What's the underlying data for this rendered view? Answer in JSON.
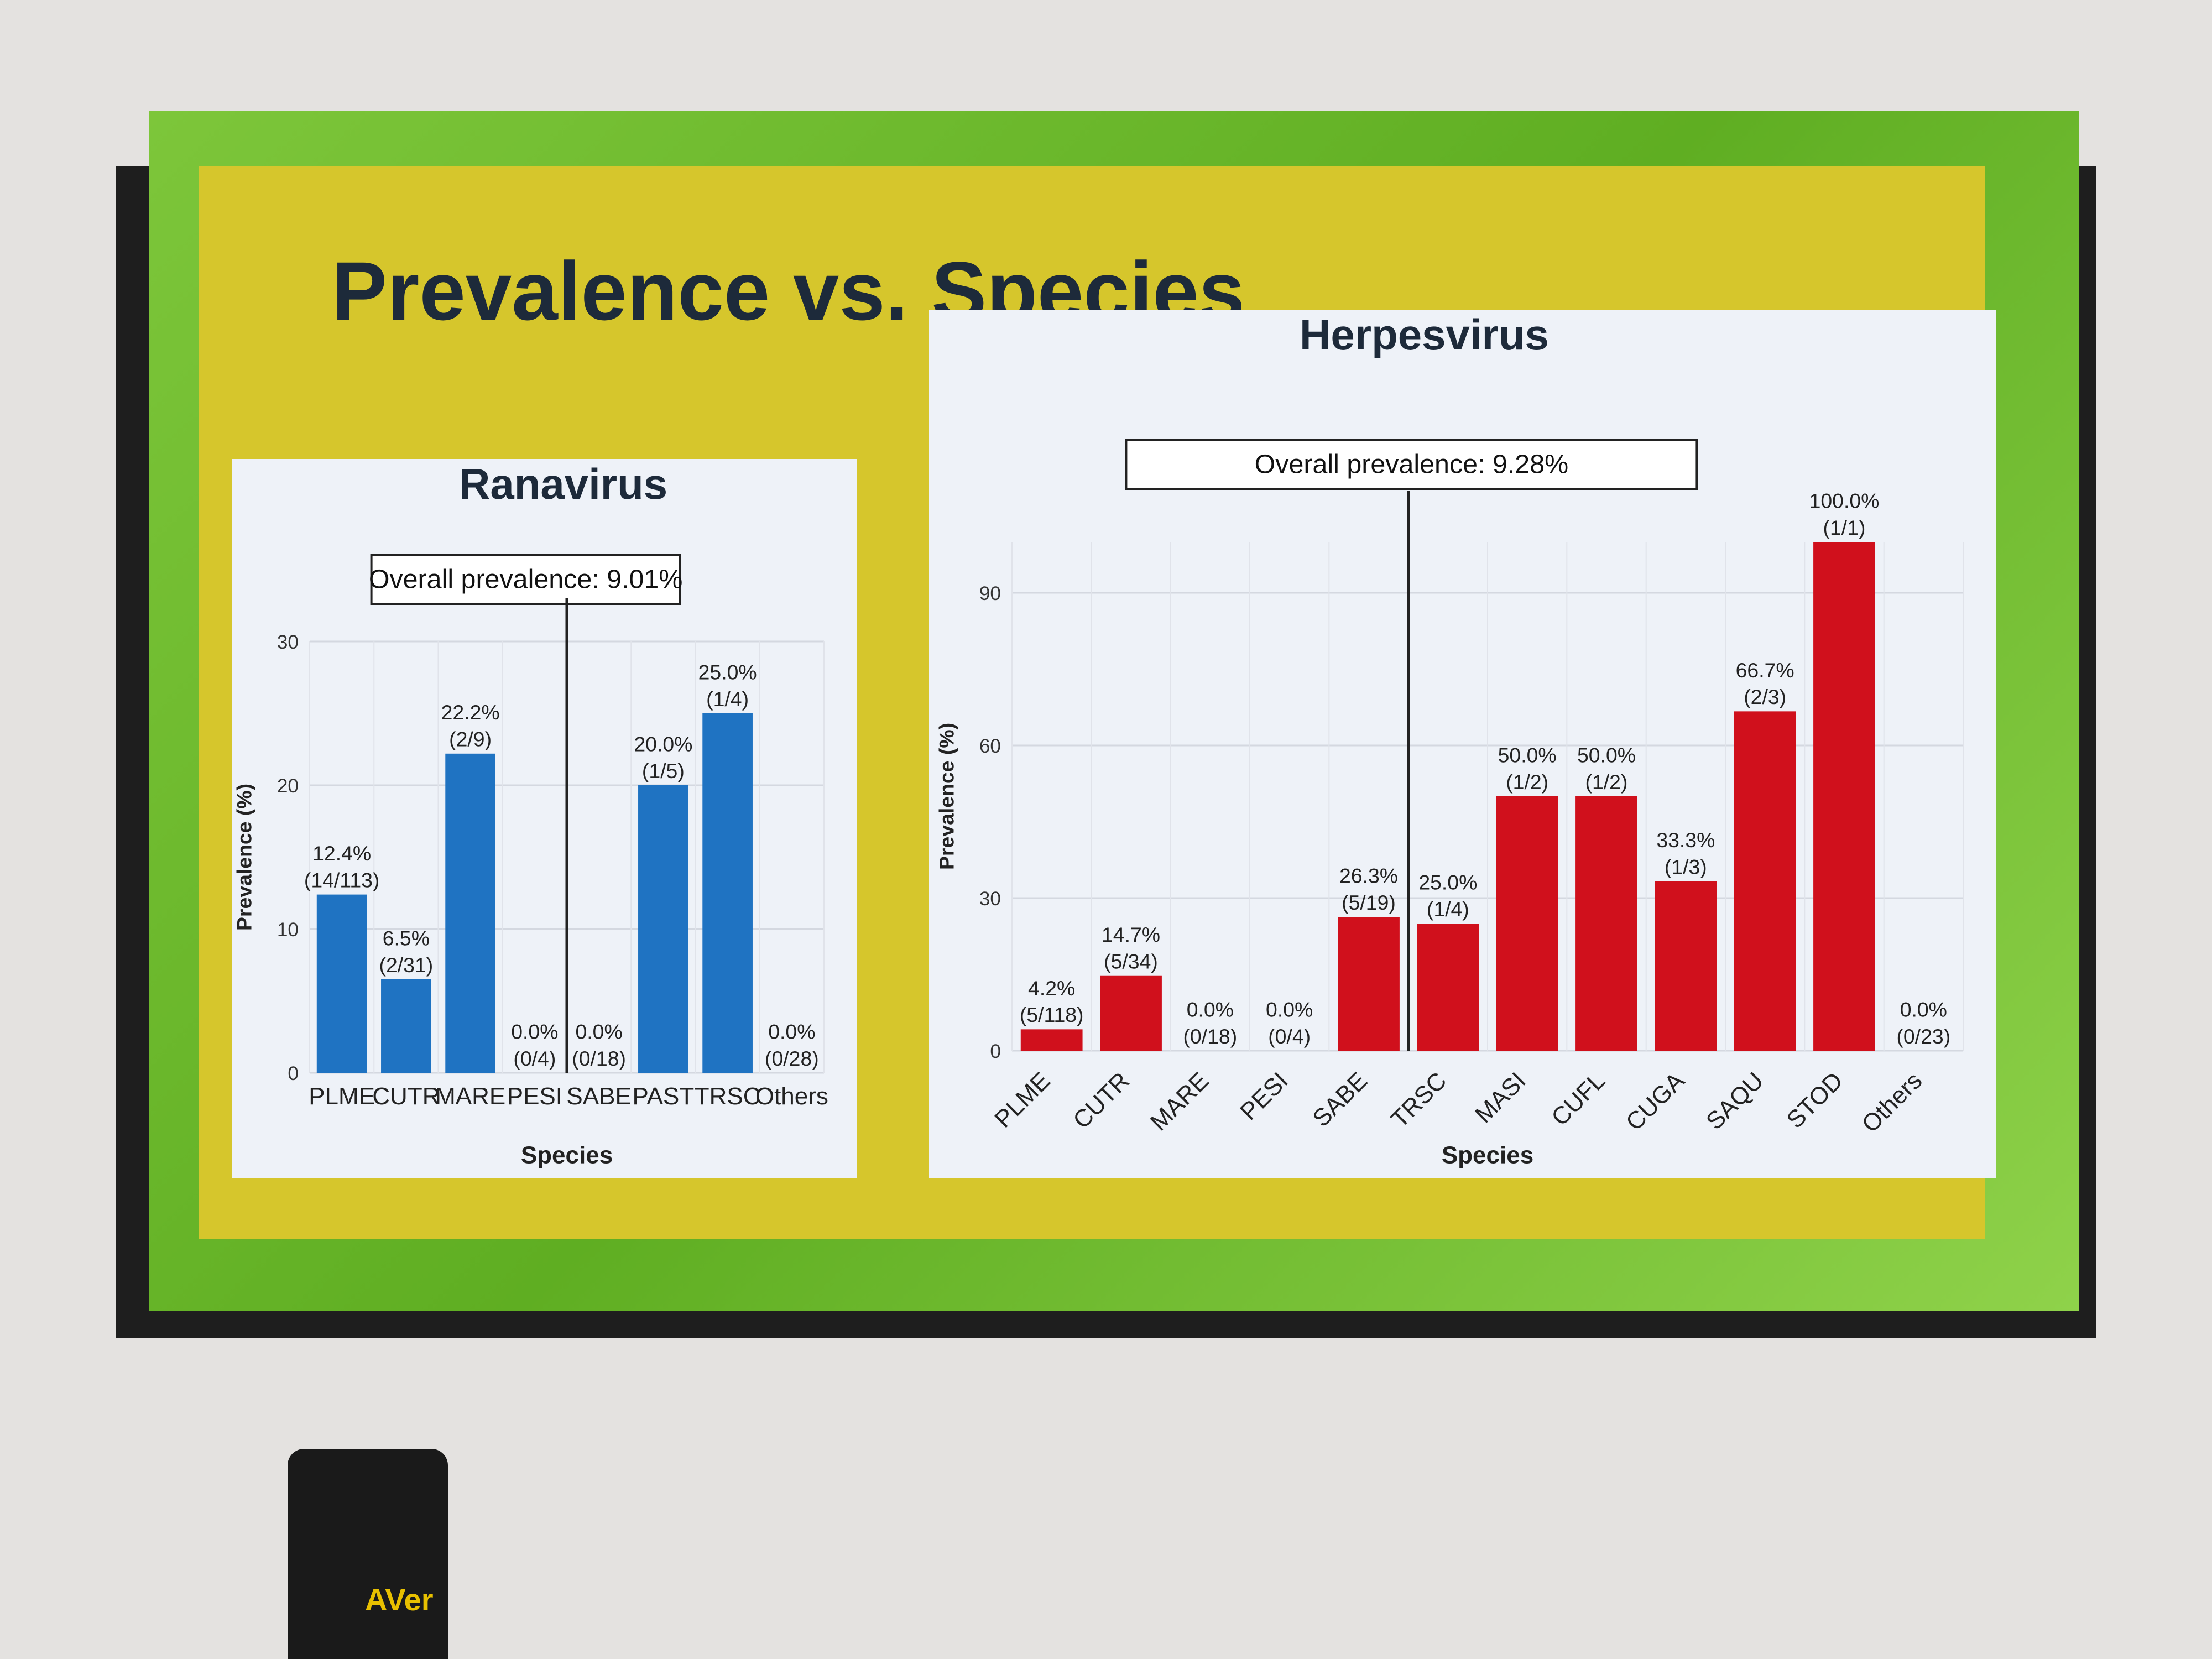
{
  "slide_title": "Prevalence vs. Species",
  "device_label": "AVer",
  "chart_data": [
    {
      "type": "bar",
      "title": "Ranavirus",
      "annotation": "Overall prevalence: 9.01%",
      "xlabel": "Species",
      "ylabel": "Prevalence (%)",
      "ylim": [
        0,
        30
      ],
      "yticks": [
        0,
        10,
        20,
        30
      ],
      "grid": true,
      "color": "#1f73c2",
      "divider_after": "PESI",
      "categories": [
        "PLME",
        "CUTR",
        "MARE",
        "PESI",
        "SABE",
        "PAST",
        "TRSC",
        "Others"
      ],
      "values": [
        12.4,
        6.5,
        22.2,
        0.0,
        0.0,
        20.0,
        25.0,
        0.0
      ],
      "labels": [
        "12.4%",
        "6.5%",
        "22.2%",
        "0.0%",
        "0.0%",
        "20.0%",
        "25.0%",
        "0.0%"
      ],
      "counts": [
        "(14/113)",
        "(2/31)",
        "(2/9)",
        "(0/4)",
        "(0/18)",
        "(1/5)",
        "(1/4)",
        "(0/28)"
      ]
    },
    {
      "type": "bar",
      "title": "Herpesvirus",
      "annotation": "Overall prevalence: 9.28%",
      "xlabel": "Species",
      "ylabel": "Prevalence (%)",
      "ylim": [
        0,
        100
      ],
      "yticks": [
        0,
        30,
        60,
        90
      ],
      "grid": true,
      "color": "#d0101c",
      "divider_after": "SABE",
      "categories": [
        "PLME",
        "CUTR",
        "MARE",
        "PESI",
        "SABE",
        "TRSC",
        "MASI",
        "CUFL",
        "CUGA",
        "SAQU",
        "STOD",
        "Others"
      ],
      "values": [
        4.2,
        14.7,
        0.0,
        0.0,
        26.3,
        25.0,
        50.0,
        50.0,
        33.3,
        66.7,
        100.0,
        0.0
      ],
      "labels": [
        "4.2%",
        "14.7%",
        "0.0%",
        "0.0%",
        "26.3%",
        "25.0%",
        "50.0%",
        "50.0%",
        "33.3%",
        "66.7%",
        "100.0%",
        "0.0%"
      ],
      "counts": [
        "(5/118)",
        "(5/34)",
        "(0/18)",
        "(0/4)",
        "(5/19)",
        "(1/4)",
        "(1/2)",
        "(1/2)",
        "(1/3)",
        "(2/3)",
        "(1/1)",
        "(0/23)"
      ]
    }
  ]
}
